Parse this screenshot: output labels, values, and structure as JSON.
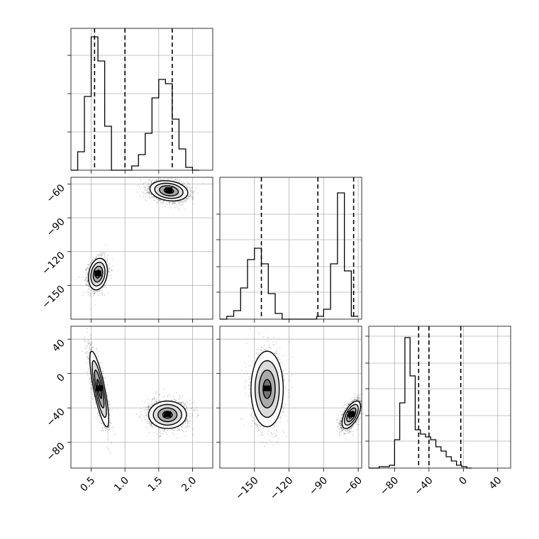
{
  "chart_data": [
    {
      "type": "histogram",
      "panel": "p1-marginal",
      "xlim": [
        0.2,
        2.3
      ],
      "ylim": [
        0,
        1.0
      ],
      "bin_start": 0.2,
      "bin_width": 0.1,
      "heights": [
        0.0,
        0.13,
        0.52,
        0.94,
        0.77,
        0.31,
        0.0,
        0.0,
        0.0,
        0.03,
        0.11,
        0.26,
        0.51,
        0.64,
        0.61,
        0.36,
        0.15,
        0.02,
        0.0
      ],
      "quantiles": [
        0.55,
        1.0,
        1.7
      ],
      "y_grid": [
        0.27,
        0.54,
        0.81
      ],
      "x_grid": [
        0.5,
        1.0,
        1.5,
        2.0
      ]
    },
    {
      "type": "histogram",
      "panel": "p2-marginal",
      "xlim": [
        -180,
        -57
      ],
      "ylim": [
        0,
        1.0
      ],
      "bin_start": -180,
      "bin_width": 6,
      "heights": [
        0.0,
        0.02,
        0.06,
        0.22,
        0.42,
        0.5,
        0.39,
        0.18,
        0.04,
        0.0,
        0.0,
        0.0,
        0.0,
        0.0,
        0.02,
        0.07,
        0.39,
        0.89,
        0.34,
        0.02
      ],
      "quantiles": [
        -144,
        -95,
        -64
      ],
      "y_grid": [
        0.19,
        0.37,
        0.56,
        0.74
      ],
      "x_grid": [
        -150,
        -120,
        -90,
        -60
      ]
    },
    {
      "type": "histogram",
      "panel": "p3-marginal",
      "xlim": [
        -110,
        55
      ],
      "ylim": [
        0,
        1.0
      ],
      "bin_start": -110,
      "bin_width": 6,
      "heights": [
        0.0,
        0.0,
        0.01,
        0.01,
        0.02,
        0.2,
        0.46,
        0.92,
        0.65,
        0.27,
        0.24,
        0.22,
        0.2,
        0.15,
        0.12,
        0.08,
        0.05,
        0.02,
        0.01,
        0.0
      ],
      "quantiles": [
        -52,
        -40,
        -3
      ],
      "y_grid": [
        0.19,
        0.37,
        0.56,
        0.74,
        0.93
      ],
      "x_grid": [
        -80,
        -40,
        0,
        40
      ]
    },
    {
      "type": "scatter",
      "panel": "p2-vs-p1",
      "xlim": [
        0.2,
        2.3
      ],
      "ylim": [
        -180,
        -54
      ],
      "clusters": [
        {
          "mean": [
            0.6,
            -140
          ],
          "sd": [
            0.07,
            7
          ],
          "rho": 0.2,
          "n": 1600
        },
        {
          "mean": [
            1.65,
            -66
          ],
          "sd": [
            0.14,
            4.5
          ],
          "rho": -0.2,
          "n": 2000
        }
      ],
      "x_grid": [
        0.5,
        1.0,
        1.5,
        2.0
      ],
      "y_grid": [
        -150,
        -120,
        -90,
        -60
      ]
    },
    {
      "type": "scatter",
      "panel": "p3-vs-p1",
      "xlim": [
        0.2,
        2.3
      ],
      "ylim": [
        -110,
        55
      ],
      "clusters": [
        {
          "mean": [
            0.62,
            -18
          ],
          "sd": [
            0.07,
            22
          ],
          "rho": -0.8,
          "n": 1600
        },
        {
          "mean": [
            1.63,
            -48
          ],
          "sd": [
            0.14,
            8
          ],
          "rho": 0.0,
          "n": 2000
        }
      ],
      "x_grid": [
        0.5,
        1.0,
        1.5,
        2.0
      ],
      "y_grid": [
        -80,
        -40,
        0,
        40
      ]
    },
    {
      "type": "scatter",
      "panel": "p3-vs-p2",
      "xlim": [
        -180,
        -57
      ],
      "ylim": [
        -110,
        55
      ],
      "clusters": [
        {
          "mean": [
            -139,
            -18
          ],
          "sd": [
            7,
            22
          ],
          "rho": 0.0,
          "n": 1600
        },
        {
          "mean": [
            -66,
            -48
          ],
          "sd": [
            4,
            8
          ],
          "rho": 0.6,
          "n": 2000
        }
      ],
      "x_grid": [
        -150,
        -120,
        -90,
        -60
      ],
      "y_grid": [
        -80,
        -40,
        0,
        40
      ]
    }
  ],
  "axes": {
    "p1_ticks": [
      "0.5",
      "1.0",
      "1.5",
      "2.0"
    ],
    "p2_ticks": [
      "−150",
      "−120",
      "−90",
      "−60"
    ],
    "p3_ticks": [
      "−80",
      "−40",
      "0",
      "40"
    ]
  },
  "colors": {
    "line": "#000000",
    "grid": "#b0b0b0",
    "scatter": "#000000"
  }
}
